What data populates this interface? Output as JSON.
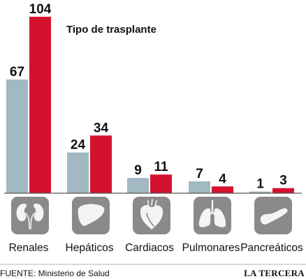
{
  "chart_data": {
    "type": "bar",
    "title": "Tipo de trasplante",
    "categories": [
      "Renales",
      "Hepáticos",
      "Cardiacos",
      "Pulmonares",
      "Pancreáticos"
    ],
    "series": [
      {
        "values": [
          67,
          24,
          9,
          7,
          1
        ]
      },
      {
        "values": [
          104,
          34,
          11,
          4,
          3
        ]
      }
    ],
    "ylim": [
      0,
      104
    ],
    "xlabel": "",
    "ylabel": "",
    "grid": false,
    "colors": {
      "series_0": "#a2b8c2",
      "series_1": "#d4122e"
    },
    "icons": [
      "kidneys-icon",
      "liver-icon",
      "heart-icon",
      "lungs-icon",
      "pancreas-icon"
    ]
  },
  "footer": {
    "source": "FUENTE: Ministerio de Salud",
    "brand": "LA TERCERA"
  }
}
